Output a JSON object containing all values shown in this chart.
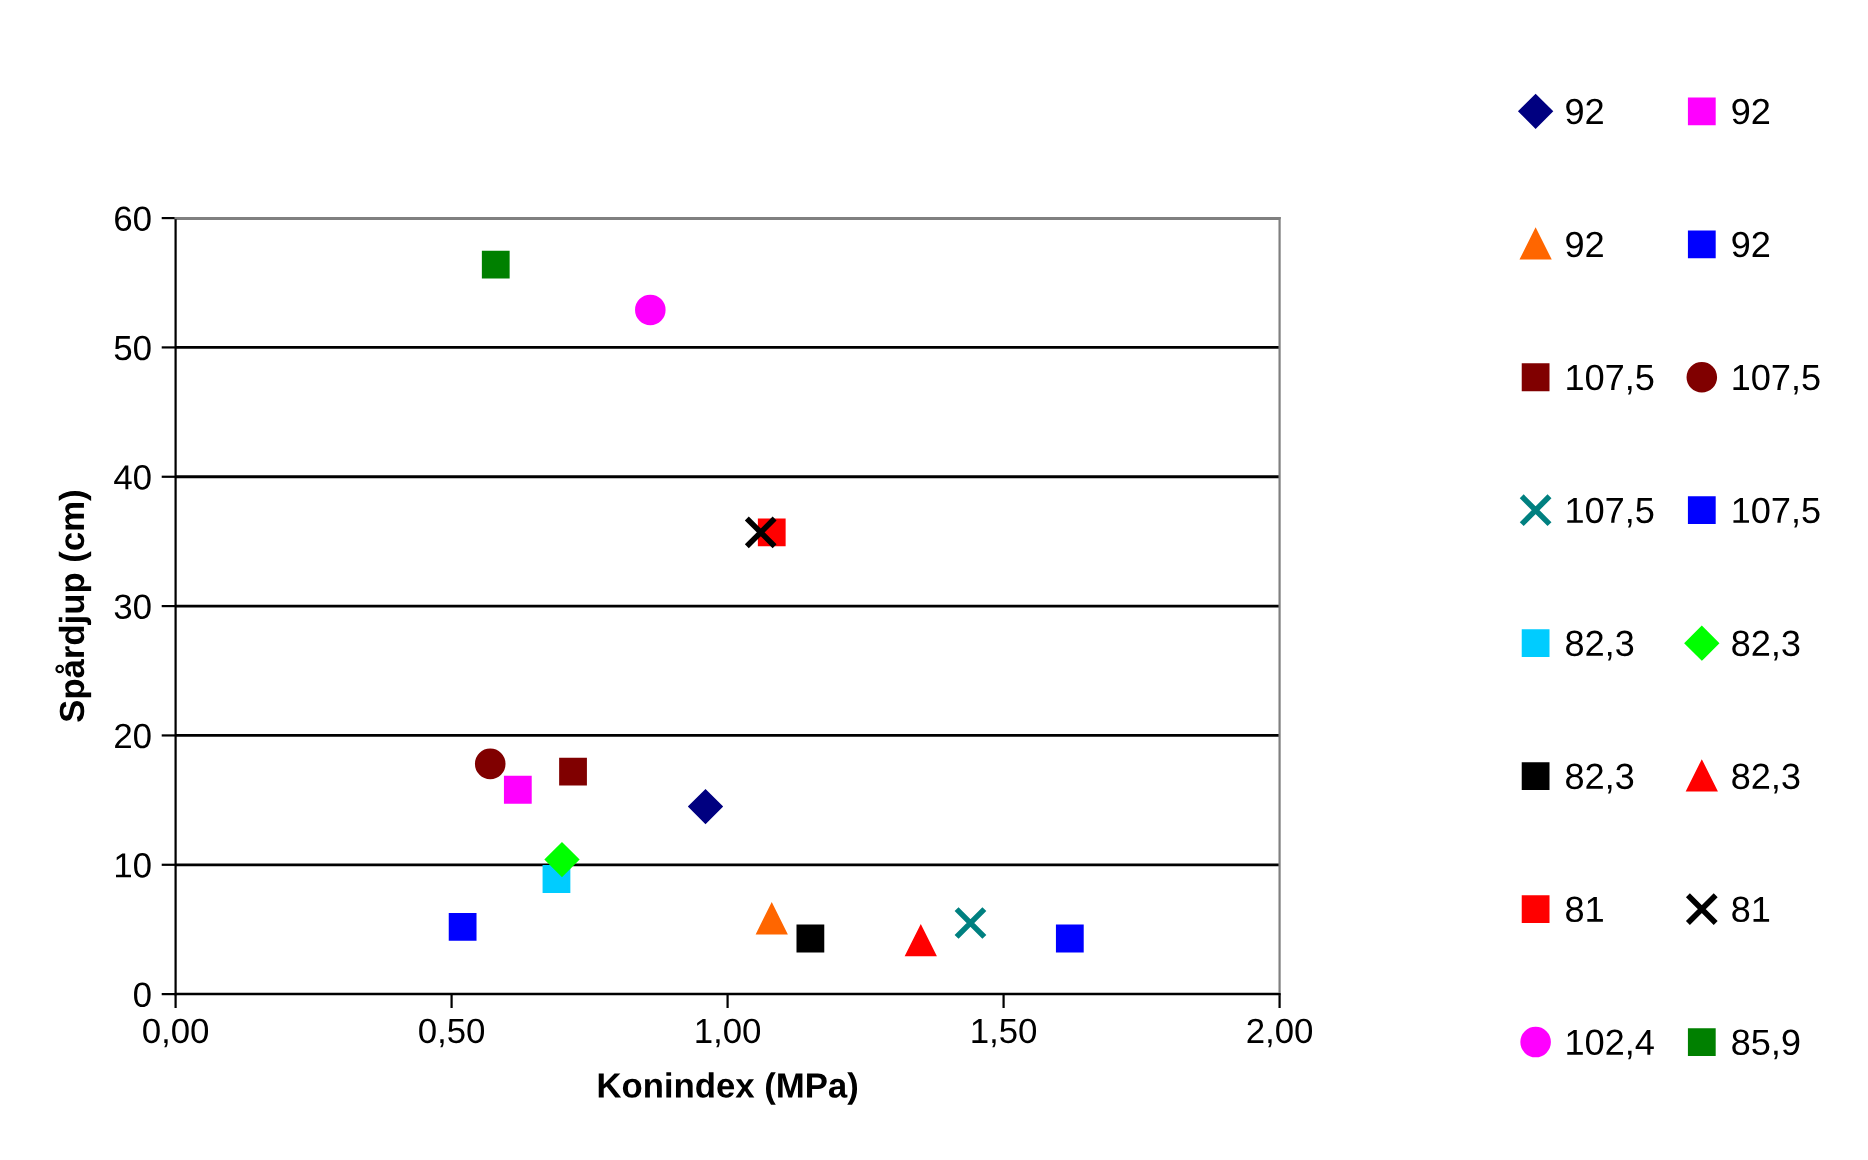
{
  "chart_data": {
    "type": "scatter",
    "xlabel": "Konindex (MPa)",
    "ylabel": "Spårdjup (cm)",
    "xlim": [
      0,
      2
    ],
    "xticks": [
      {
        "value": 0,
        "label": "0,00"
      },
      {
        "value": 0.5,
        "label": "0,50"
      },
      {
        "value": 1,
        "label": "1,00"
      },
      {
        "value": 1.5,
        "label": "1,50"
      },
      {
        "value": 2,
        "label": "2,00"
      }
    ],
    "ylim": [
      0,
      60
    ],
    "yticks": [
      0,
      10,
      20,
      30,
      40,
      50,
      60
    ],
    "grid": "y",
    "legend": "right",
    "series": [
      {
        "name": "92",
        "color": "#000080",
        "marker": "diamond",
        "x": [
          0.96
        ],
        "values": [
          14.5
        ]
      },
      {
        "name": "92",
        "color": "#ff00ff",
        "marker": "square",
        "x": [
          0.62
        ],
        "values": [
          15.8
        ]
      },
      {
        "name": "92",
        "color": "#ff6600",
        "marker": "triangle",
        "x": [
          1.08
        ],
        "values": [
          5.8
        ]
      },
      {
        "name": "92",
        "color": "#0000ff",
        "marker": "square",
        "x": [
          0.52
        ],
        "values": [
          5.2
        ]
      },
      {
        "name": "107,5",
        "color": "#800000",
        "marker": "square",
        "x": [
          0.72
        ],
        "values": [
          17.2
        ]
      },
      {
        "name": "107,5",
        "color": "#800000",
        "marker": "circle",
        "x": [
          0.57
        ],
        "values": [
          17.8
        ]
      },
      {
        "name": "107,5",
        "color": "#008080",
        "marker": "cross",
        "x": [
          1.44
        ],
        "values": [
          5.5
        ]
      },
      {
        "name": "107,5",
        "color": "#0000ff",
        "marker": "square",
        "x": [
          1.62
        ],
        "values": [
          4.3
        ]
      },
      {
        "name": "82,3",
        "color": "#00ccff",
        "marker": "square",
        "x": [
          0.69
        ],
        "values": [
          8.9
        ]
      },
      {
        "name": "82,3",
        "color": "#00ff00",
        "marker": "diamond",
        "x": [
          0.7
        ],
        "values": [
          10.4
        ]
      },
      {
        "name": "82,3",
        "color": "#000000",
        "marker": "square",
        "x": [
          1.15
        ],
        "values": [
          4.3
        ]
      },
      {
        "name": "82,3",
        "color": "#ff0000",
        "marker": "triangle",
        "x": [
          1.35
        ],
        "values": [
          4.1
        ]
      },
      {
        "name": "81",
        "color": "#ff0000",
        "marker": "square",
        "x": [
          1.08
        ],
        "values": [
          35.7
        ]
      },
      {
        "name": "81",
        "color": "#000000",
        "marker": "cross",
        "x": [
          1.06
        ],
        "values": [
          35.7
        ]
      },
      {
        "name": "102,4",
        "color": "#ff00ff",
        "marker": "circle",
        "x": [
          0.86
        ],
        "values": [
          52.9
        ]
      },
      {
        "name": "85,9",
        "color": "#008000",
        "marker": "square",
        "x": [
          0.58
        ],
        "values": [
          56.4
        ]
      }
    ]
  }
}
